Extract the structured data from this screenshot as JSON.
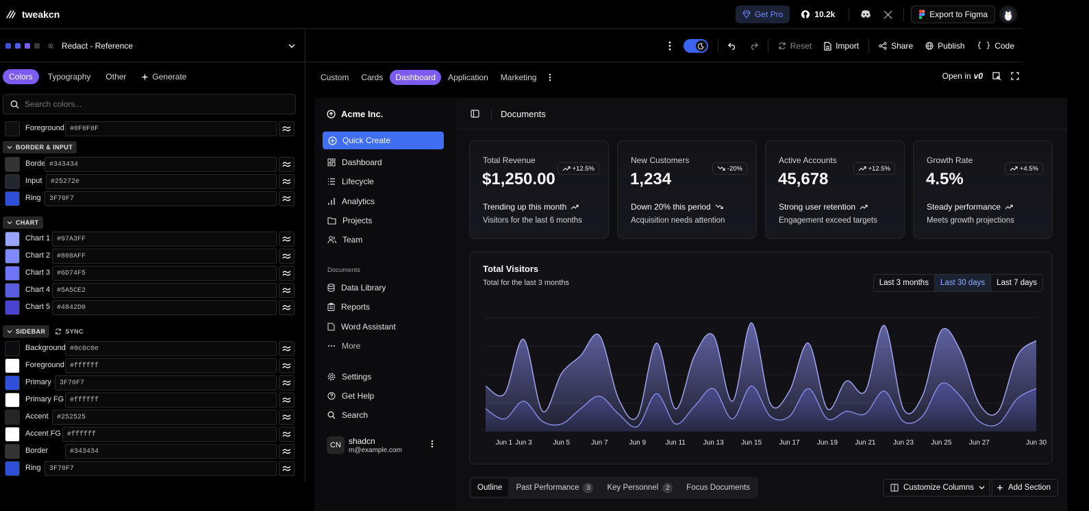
{
  "topbar": {
    "brand": "tweakcn",
    "get_pro": "Get Pro",
    "github_stars": "10.2k",
    "export_figma": "Export to Figma"
  },
  "left": {
    "theme_name": "Redact - Reference",
    "swatches": [
      "#3f51d8",
      "#4a5ee8",
      "#7c5cf0",
      "#3a3a3a"
    ],
    "tabs": [
      "Colors",
      "Typography",
      "Other",
      "Generate"
    ],
    "search_placeholder": "Search colors...",
    "rows": [
      {
        "label": "Foreground",
        "value": "#0F0F0F",
        "color": "#0f0f0f"
      },
      {
        "label": "Border",
        "value": "#343434",
        "color": "#343434"
      },
      {
        "label": "Input",
        "value": "#25272e",
        "color": "#25272e"
      },
      {
        "label": "Ring",
        "value": "3F70F7",
        "color": "#2f4fd8"
      },
      {
        "label": "Chart 1",
        "value": "#97A3FF",
        "color": "#97a3ff"
      },
      {
        "label": "Chart 2",
        "value": "#808AFF",
        "color": "#808aff"
      },
      {
        "label": "Chart 3",
        "value": "#6D74F5",
        "color": "#6d74f5"
      },
      {
        "label": "Chart 4",
        "value": "#5A5CE2",
        "color": "#5a5ce2"
      },
      {
        "label": "Chart 5",
        "value": "#4842D0",
        "color": "#4842d0"
      },
      {
        "label": "Background",
        "value": "#0c0c0e",
        "color": "#0c0c0e"
      },
      {
        "label": "Foreground",
        "value": "#ffffff",
        "color": "#ffffff"
      },
      {
        "label": "Primary",
        "value": "3F70F7",
        "color": "#2f4fd8"
      },
      {
        "label": "Primary FG",
        "value": "#ffffff",
        "color": "#ffffff"
      },
      {
        "label": "Accent",
        "value": "#252525",
        "color": "#252525"
      },
      {
        "label": "Accent FG",
        "value": "#ffffff",
        "color": "#ffffff"
      },
      {
        "label": "Border",
        "value": "#343434",
        "color": "#343434"
      },
      {
        "label": "Ring",
        "value": "3F70F7",
        "color": "#2f4fd8"
      }
    ],
    "sections": {
      "border_input": "BORDER & INPUT",
      "chart": "CHART",
      "sidebar": "SIDEBAR",
      "sync": "SYNC"
    }
  },
  "toolbar": {
    "reset": "Reset",
    "import": "Import",
    "share": "Share",
    "publish": "Publish",
    "code": "Code"
  },
  "preview_tabs": [
    "Custom",
    "Cards",
    "Dashboard",
    "Application",
    "Marketing"
  ],
  "open_in": "Open in",
  "app": {
    "company": "Acme Inc.",
    "quick_create": "Quick Create",
    "nav": [
      "Dashboard",
      "Lifecycle",
      "Analytics",
      "Projects",
      "Team"
    ],
    "documents_group": "Documents",
    "doc_nav": [
      "Data Library",
      "Reports",
      "Word Assistant",
      "More"
    ],
    "footer_nav": [
      "Settings",
      "Get Help",
      "Search"
    ],
    "user": {
      "initials": "CN",
      "name": "shadcn",
      "email": "m@example.com"
    },
    "header_title": "Documents",
    "kpis": [
      {
        "label": "Total Revenue",
        "value": "$1,250.00",
        "badge": "+12.5%",
        "trend": "Trending up this month",
        "sub": "Visitors for the last 6 months",
        "up": true
      },
      {
        "label": "New Customers",
        "value": "1,234",
        "badge": "-20%",
        "trend": "Down 20% this period",
        "sub": "Acquisition needs attention",
        "up": false
      },
      {
        "label": "Active Accounts",
        "value": "45,678",
        "badge": "+12.5%",
        "trend": "Strong user retention",
        "sub": "Engagement exceed targets",
        "up": true
      },
      {
        "label": "Growth Rate",
        "value": "4.5%",
        "badge": "+4.5%",
        "trend": "Steady performance",
        "sub": "Meets growth projections",
        "up": true
      }
    ],
    "visitors": {
      "title": "Total Visitors",
      "subtitle": "Total for the last 3 months",
      "ranges": [
        "Last 3 months",
        "Last 30 days",
        "Last 7 days"
      ],
      "selected_range": "Last 30 days"
    },
    "bottom_tabs": [
      {
        "label": "Outline",
        "count": null
      },
      {
        "label": "Past Performance",
        "count": "3"
      },
      {
        "label": "Key Personnel",
        "count": "2"
      },
      {
        "label": "Focus Documents",
        "count": null
      }
    ],
    "customize_columns": "Customize Columns",
    "add_section": "Add Section"
  },
  "chart_data": {
    "type": "area",
    "x": [
      "Jun 1",
      "Jun 2",
      "Jun 3",
      "Jun 4",
      "Jun 5",
      "Jun 6",
      "Jun 7",
      "Jun 8",
      "Jun 9",
      "Jun 10",
      "Jun 11",
      "Jun 12",
      "Jun 13",
      "Jun 14",
      "Jun 15",
      "Jun 16",
      "Jun 17",
      "Jun 18",
      "Jun 19",
      "Jun 20",
      "Jun 21",
      "Jun 22",
      "Jun 23",
      "Jun 24",
      "Jun 25",
      "Jun 26",
      "Jun 27",
      "Jun 28",
      "Jun 29",
      "Jun 30"
    ],
    "x_tick_labels": [
      "Jun 1",
      "Jun 3",
      "Jun 5",
      "Jun 7",
      "Jun 9",
      "Jun 11",
      "Jun 13",
      "Jun 15",
      "Jun 17",
      "Jun 19",
      "Jun 21",
      "Jun 23",
      "Jun 25",
      "Jun 27",
      "Jun 30"
    ],
    "series": [
      {
        "values": [
          180,
          150,
          365,
          80,
          230,
          300,
          380,
          130,
          60,
          350,
          90,
          300,
          380,
          120,
          430,
          110,
          160,
          350,
          90,
          200,
          160,
          420,
          90,
          140,
          400,
          320,
          110,
          80,
          300,
          360
        ],
        "color": "#7c7fd6"
      },
      {
        "values": [
          90,
          50,
          120,
          40,
          30,
          90,
          140,
          70,
          20,
          150,
          30,
          100,
          170,
          50,
          180,
          60,
          60,
          170,
          50,
          80,
          70,
          160,
          40,
          60,
          190,
          140,
          40,
          30,
          130,
          170
        ],
        "color": "#5b5ec0"
      }
    ],
    "ylim": [
      0,
      450
    ],
    "grid": true
  }
}
